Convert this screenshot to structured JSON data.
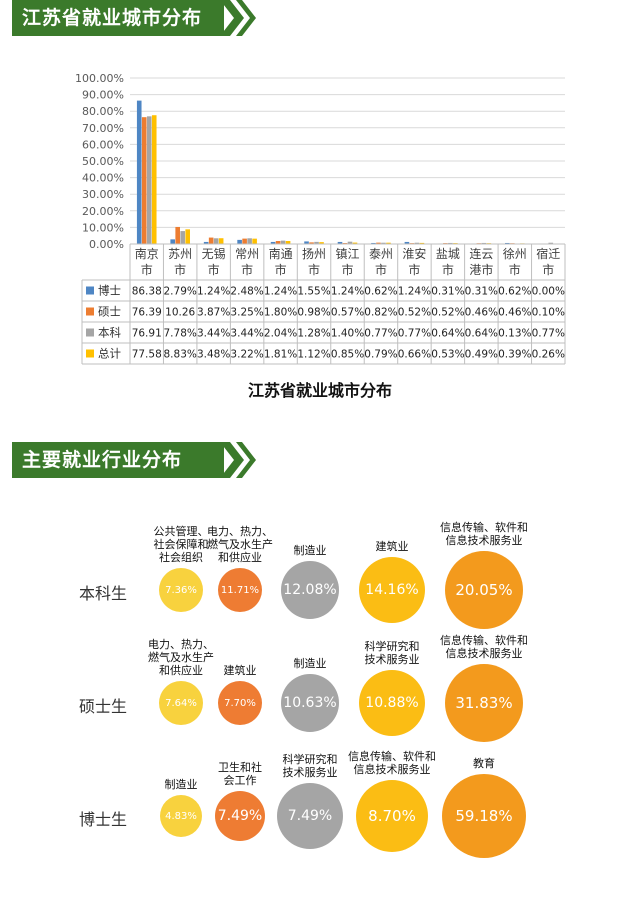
{
  "banners": {
    "city": "江苏省就业城市分布",
    "industry": "主要就业行业分布"
  },
  "chart_data": [
    {
      "type": "bar",
      "title": "江苏省就业城市分布",
      "categories": [
        "南京市",
        "苏州市",
        "无锡市",
        "常州市",
        "南通市",
        "扬州市",
        "镇江市",
        "泰州市",
        "淮安市",
        "盐城市",
        "连云港市",
        "徐州市",
        "宿迁市"
      ],
      "category_labels": [
        [
          "南京",
          "市"
        ],
        [
          "苏州",
          "市"
        ],
        [
          "无锡",
          "市"
        ],
        [
          "常州",
          "市"
        ],
        [
          "南通",
          "市"
        ],
        [
          "扬州",
          "市"
        ],
        [
          "镇江",
          "市"
        ],
        [
          "泰州",
          "市"
        ],
        [
          "淮安",
          "市"
        ],
        [
          "盐城",
          "市"
        ],
        [
          "连云",
          "港市"
        ],
        [
          "徐州",
          "市"
        ],
        [
          "宿迁",
          "市"
        ]
      ],
      "ylim": [
        0,
        100
      ],
      "yticks": [
        "0.00%",
        "10.00%",
        "20.00%",
        "30.00%",
        "40.00%",
        "50.00%",
        "60.00%",
        "70.00%",
        "80.00%",
        "90.00%",
        "100.00%"
      ],
      "grid": true,
      "legend": "table-left",
      "series": [
        {
          "name": "博士",
          "color": "#4e86c4",
          "values": [
            86.38,
            2.79,
            1.24,
            2.48,
            1.24,
            1.55,
            1.24,
            0.62,
            1.24,
            0.31,
            0.31,
            0.62,
            0.0
          ],
          "labels": [
            "86.38",
            "2.79%",
            "1.24%",
            "2.48%",
            "1.24%",
            "1.55%",
            "1.24%",
            "0.62%",
            "1.24%",
            "0.31%",
            "0.31%",
            "0.62%",
            "0.00%"
          ]
        },
        {
          "name": "硕士",
          "color": "#ed7d31",
          "values": [
            76.39,
            10.26,
            3.87,
            3.25,
            1.8,
            0.98,
            0.57,
            0.82,
            0.52,
            0.52,
            0.46,
            0.46,
            0.1
          ],
          "labels": [
            "76.39",
            "10.26",
            "3.87%",
            "3.25%",
            "1.80%",
            "0.98%",
            "0.57%",
            "0.82%",
            "0.52%",
            "0.52%",
            "0.46%",
            "0.46%",
            "0.10%"
          ]
        },
        {
          "name": "本科",
          "color": "#a5a5a5",
          "values": [
            76.91,
            7.78,
            3.44,
            3.44,
            2.04,
            1.28,
            1.4,
            0.77,
            0.77,
            0.64,
            0.64,
            0.13,
            0.77
          ],
          "labels": [
            "76.91",
            "7.78%",
            "3.44%",
            "3.44%",
            "2.04%",
            "1.28%",
            "1.40%",
            "0.77%",
            "0.77%",
            "0.64%",
            "0.64%",
            "0.13%",
            "0.77%"
          ]
        },
        {
          "name": "总计",
          "color": "#ffc000",
          "values": [
            77.58,
            8.83,
            3.48,
            3.22,
            1.81,
            1.12,
            0.85,
            0.79,
            0.66,
            0.53,
            0.49,
            0.39,
            0.26
          ],
          "labels": [
            "77.58",
            "8.83%",
            "3.48%",
            "3.22%",
            "1.81%",
            "1.12%",
            "0.85%",
            "0.79%",
            "0.66%",
            "0.53%",
            "0.49%",
            "0.39%",
            "0.26%"
          ]
        }
      ]
    },
    {
      "type": "bubble",
      "rows": [
        {
          "label": "本科生",
          "items": [
            {
              "caption": [
                "公共管理、",
                "社会保障和",
                "社会组织"
              ],
              "value": 7.36,
              "text": "7.36%",
              "color": "#f8d23e"
            },
            {
              "caption": [
                "电力、热力、",
                "燃气及水生产",
                "和供应业"
              ],
              "value": 11.71,
              "text": "11.71%",
              "color": "#ee7c33"
            },
            {
              "caption": [
                "制造业"
              ],
              "value": 12.08,
              "text": "12.08%",
              "color": "#a5a5a5"
            },
            {
              "caption": [
                "建筑业"
              ],
              "value": 14.16,
              "text": "14.16%",
              "color": "#fbbd14"
            },
            {
              "caption": [
                "信息传输、软件和",
                "信息技术服务业"
              ],
              "value": 20.05,
              "text": "20.05%",
              "color": "#f39a1d"
            }
          ]
        },
        {
          "label": "硕士生",
          "items": [
            {
              "caption": [
                "电力、热力、",
                "燃气及水生产",
                "和供应业"
              ],
              "value": 7.64,
              "text": "7.64%",
              "color": "#f8d23e"
            },
            {
              "caption": [
                "建筑业"
              ],
              "value": 7.7,
              "text": "7.70%",
              "color": "#ee7c33"
            },
            {
              "caption": [
                "制造业"
              ],
              "value": 10.63,
              "text": "10.63%",
              "color": "#a5a5a5"
            },
            {
              "caption": [
                "科学研究和",
                "技术服务业"
              ],
              "value": 10.88,
              "text": "10.88%",
              "color": "#fbbd14"
            },
            {
              "caption": [
                "信息传输、软件和",
                "信息技术服务业"
              ],
              "value": 31.83,
              "text": "31.83%",
              "color": "#f39a1d"
            }
          ]
        },
        {
          "label": "博士生",
          "items": [
            {
              "caption": [
                "制造业"
              ],
              "value": 4.83,
              "text": "4.83%",
              "color": "#f8d23e"
            },
            {
              "caption": [
                "卫生和社",
                "会工作"
              ],
              "value": 7.49,
              "text": "7.49%",
              "color": "#ee7c33"
            },
            {
              "caption": [
                "科学研究和",
                "技术服务业"
              ],
              "value": 7.49,
              "text": "7.49%",
              "color": "#a5a5a5"
            },
            {
              "caption": [
                "信息传输、软件和",
                "信息技术服务业"
              ],
              "value": 8.7,
              "text": "8.70%",
              "color": "#fbbd14"
            },
            {
              "caption": [
                "教育"
              ],
              "value": 59.18,
              "text": "59.18%",
              "color": "#f39a1d"
            }
          ]
        }
      ]
    }
  ]
}
